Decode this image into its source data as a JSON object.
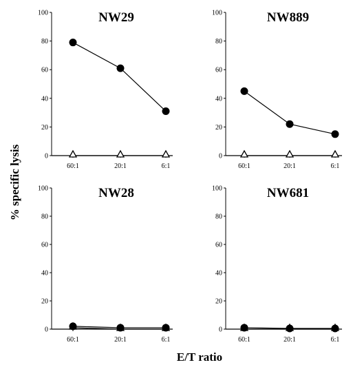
{
  "figure": {
    "ylabel": "% specific lysis",
    "xlabel": "E/T ratio"
  },
  "chart_data": [
    {
      "type": "line",
      "title": "NW29",
      "categories": [
        "60:1",
        "20:1",
        "6:1"
      ],
      "ylim": [
        0,
        100
      ],
      "yticks": [
        0,
        20,
        40,
        60,
        80,
        100
      ],
      "series": [
        {
          "marker": "filled-circle",
          "values": [
            79,
            61,
            31
          ]
        },
        {
          "marker": "open-triangle",
          "values": [
            0,
            0,
            0
          ]
        }
      ]
    },
    {
      "type": "line",
      "title": "NW889",
      "categories": [
        "60:1",
        "20:1",
        "6:1"
      ],
      "ylim": [
        0,
        100
      ],
      "yticks": [
        0,
        20,
        40,
        60,
        80,
        100
      ],
      "series": [
        {
          "marker": "filled-circle",
          "values": [
            45,
            22,
            15
          ]
        },
        {
          "marker": "open-triangle",
          "values": [
            0,
            0,
            0
          ]
        }
      ]
    },
    {
      "type": "line",
      "title": "NW28",
      "categories": [
        "60:1",
        "20:1",
        "6:1"
      ],
      "ylim": [
        0,
        100
      ],
      "yticks": [
        0,
        20,
        40,
        60,
        80,
        100
      ],
      "series": [
        {
          "marker": "filled-circle",
          "values": [
            2,
            1,
            1
          ]
        },
        {
          "marker": "open-triangle",
          "values": [
            1,
            0,
            0
          ]
        }
      ]
    },
    {
      "type": "line",
      "title": "NW681",
      "categories": [
        "60:1",
        "20:1",
        "6:1"
      ],
      "ylim": [
        0,
        100
      ],
      "yticks": [
        0,
        20,
        40,
        60,
        80,
        100
      ],
      "series": [
        {
          "marker": "filled-circle",
          "values": [
            1,
            0.5,
            0.5
          ]
        },
        {
          "marker": "open-triangle",
          "values": [
            0,
            0,
            0
          ]
        }
      ]
    }
  ]
}
